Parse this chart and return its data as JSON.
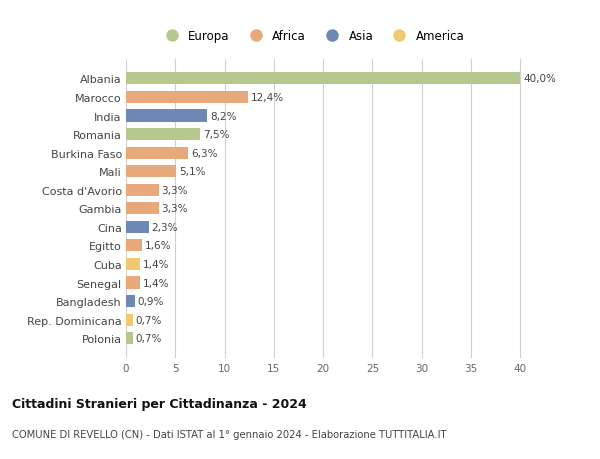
{
  "countries": [
    "Albania",
    "Marocco",
    "India",
    "Romania",
    "Burkina Faso",
    "Mali",
    "Costa d'Avorio",
    "Gambia",
    "Cina",
    "Egitto",
    "Cuba",
    "Senegal",
    "Bangladesh",
    "Rep. Dominicana",
    "Polonia"
  ],
  "values": [
    40.0,
    12.4,
    8.2,
    7.5,
    6.3,
    5.1,
    3.3,
    3.3,
    2.3,
    1.6,
    1.4,
    1.4,
    0.9,
    0.7,
    0.7
  ],
  "labels": [
    "40,0%",
    "12,4%",
    "8,2%",
    "7,5%",
    "6,3%",
    "5,1%",
    "3,3%",
    "3,3%",
    "2,3%",
    "1,6%",
    "1,4%",
    "1,4%",
    "0,9%",
    "0,7%",
    "0,7%"
  ],
  "continents": [
    "Europa",
    "Africa",
    "Asia",
    "Europa",
    "Africa",
    "Africa",
    "Africa",
    "Africa",
    "Asia",
    "Africa",
    "America",
    "Africa",
    "Asia",
    "America",
    "Europa"
  ],
  "colors": {
    "Europa": "#b5c98e",
    "Africa": "#e8a97a",
    "Asia": "#6d88b5",
    "America": "#f0c96e"
  },
  "legend_order": [
    "Europa",
    "Africa",
    "Asia",
    "America"
  ],
  "title": "Cittadini Stranieri per Cittadinanza - 2024",
  "subtitle": "COMUNE DI REVELLO (CN) - Dati ISTAT al 1° gennaio 2024 - Elaborazione TUTTITALIA.IT",
  "xlim": [
    0,
    42
  ],
  "xticks": [
    0,
    5,
    10,
    15,
    20,
    25,
    30,
    35,
    40
  ],
  "bg_color": "#ffffff",
  "grid_color": "#d0d0d0",
  "bar_height": 0.65,
  "label_fontsize": 7.5,
  "ytick_fontsize": 8.0,
  "xtick_fontsize": 7.5
}
